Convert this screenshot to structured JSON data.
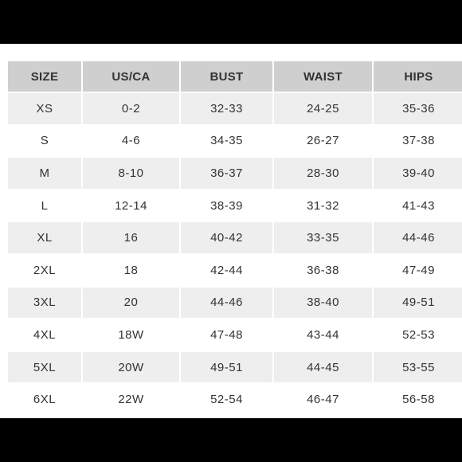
{
  "colors": {
    "background": "#000000",
    "panel": "#ffffff",
    "header_fill": "#cfcfcf",
    "row_shaded": "#eeeeee",
    "text": "#333333"
  },
  "table": {
    "headers": [
      "SIZE",
      "US/CA",
      "BUST",
      "WAIST",
      "HIPS"
    ],
    "rows": [
      [
        "XS",
        "0-2",
        "32-33",
        "24-25",
        "35-36"
      ],
      [
        "S",
        "4-6",
        "34-35",
        "26-27",
        "37-38"
      ],
      [
        "M",
        "8-10",
        "36-37",
        "28-30",
        "39-40"
      ],
      [
        "L",
        "12-14",
        "38-39",
        "31-32",
        "41-43"
      ],
      [
        "XL",
        "16",
        "40-42",
        "33-35",
        "44-46"
      ],
      [
        "2XL",
        "18",
        "42-44",
        "36-38",
        "47-49"
      ],
      [
        "3XL",
        "20",
        "44-46",
        "38-40",
        "49-51"
      ],
      [
        "4XL",
        "18W",
        "47-48",
        "43-44",
        "52-53"
      ],
      [
        "5XL",
        "20W",
        "49-51",
        "44-45",
        "53-55"
      ],
      [
        "6XL",
        "22W",
        "52-54",
        "46-47",
        "56-58"
      ]
    ]
  }
}
